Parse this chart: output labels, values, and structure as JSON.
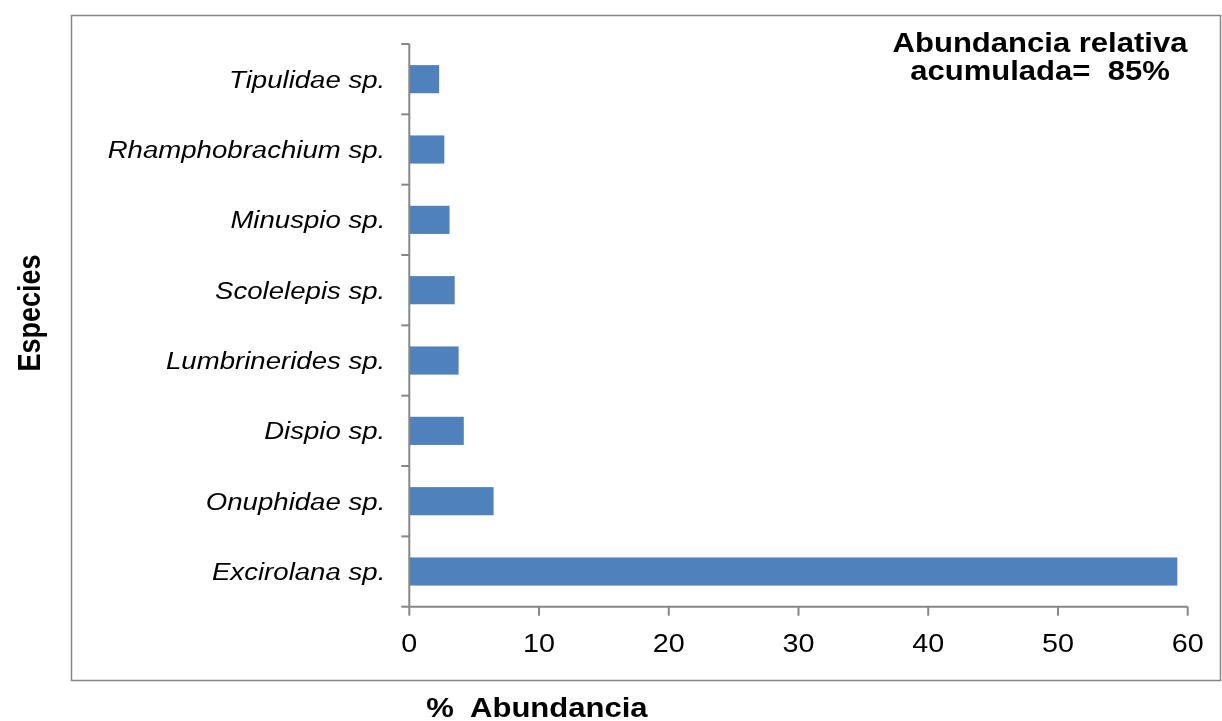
{
  "chart_data": {
    "type": "bar",
    "orientation": "horizontal",
    "categories": [
      "Tipulidae sp.",
      "Rhamphobrachium sp.",
      "Minuspio sp.",
      "Scolelepis sp.",
      "Lumbrinerides sp.",
      "Dispio sp.",
      "Onuphidae sp.",
      "Excirolana sp."
    ],
    "values": [
      2.3,
      2.7,
      3.1,
      3.5,
      3.8,
      4.2,
      6.5,
      59.2
    ],
    "color": "#4f81bd",
    "xlim": [
      0,
      60
    ],
    "xticks": [
      0,
      10,
      20,
      30,
      40,
      50,
      60
    ],
    "xlabel": "%  Abundancia",
    "ylabel": "Especies",
    "annotations": [
      "Abundancia relativa\nacumulada=  85%"
    ]
  }
}
